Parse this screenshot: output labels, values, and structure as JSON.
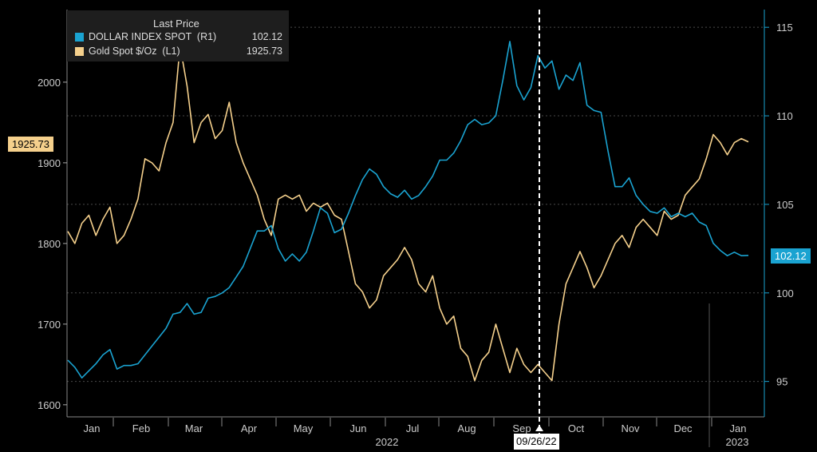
{
  "legend": {
    "header": "Last Price",
    "series": [
      {
        "name": "DOLLAR INDEX SPOT  (R1)",
        "value": "102.12",
        "color": "#1aa3d1"
      },
      {
        "name": "Gold Spot $/Oz  (L1)",
        "value": "1925.73",
        "color": "#f5d08c"
      }
    ]
  },
  "tags": {
    "gold_last": "1925.73",
    "dxy_last": "102.12"
  },
  "marker": {
    "date_label": "09/26/22"
  },
  "year_labels": {
    "y2022": "2022",
    "y2023": "2023"
  },
  "chart_data": {
    "type": "line",
    "x_labels": [
      "Jan",
      "Feb",
      "Mar",
      "Apr",
      "May",
      "Jun",
      "Jul",
      "Aug",
      "Sep",
      "Oct",
      "Nov",
      "Dec",
      "Jan"
    ],
    "left_axis": {
      "ticks": [
        1600,
        1700,
        1800,
        1900,
        2000
      ],
      "range": [
        1585,
        2090
      ]
    },
    "right_axis": {
      "ticks": [
        95,
        100,
        105,
        110,
        115
      ],
      "range": [
        93,
        116
      ]
    },
    "series": [
      {
        "name": "Gold Spot $/Oz (L1)",
        "axis": "left",
        "color": "#f5d08c",
        "values": [
          1815,
          1800,
          1825,
          1835,
          1810,
          1830,
          1845,
          1800,
          1810,
          1830,
          1855,
          1905,
          1900,
          1890,
          1925,
          1950,
          2045,
          1995,
          1925,
          1950,
          1960,
          1930,
          1940,
          1975,
          1925,
          1900,
          1880,
          1860,
          1830,
          1810,
          1855,
          1860,
          1855,
          1860,
          1840,
          1850,
          1845,
          1850,
          1835,
          1830,
          1790,
          1750,
          1740,
          1720,
          1730,
          1760,
          1770,
          1780,
          1795,
          1780,
          1750,
          1740,
          1760,
          1720,
          1700,
          1710,
          1670,
          1660,
          1630,
          1655,
          1665,
          1700,
          1670,
          1640,
          1670,
          1650,
          1640,
          1650,
          1640,
          1630,
          1700,
          1750,
          1770,
          1790,
          1770,
          1745,
          1760,
          1780,
          1800,
          1810,
          1795,
          1820,
          1830,
          1820,
          1810,
          1840,
          1830,
          1835,
          1860,
          1870,
          1880,
          1905,
          1935,
          1925,
          1910,
          1925,
          1930,
          1926
        ]
      },
      {
        "name": "DOLLAR INDEX SPOT (R1)",
        "axis": "right",
        "color": "#1aa3d1",
        "values": [
          96.2,
          95.8,
          95.2,
          95.6,
          96.0,
          96.5,
          96.8,
          95.7,
          95.9,
          95.9,
          96.0,
          96.5,
          97.0,
          97.5,
          98.0,
          98.8,
          98.9,
          99.4,
          98.8,
          98.9,
          99.7,
          99.8,
          100.0,
          100.3,
          100.9,
          101.5,
          102.5,
          103.5,
          103.5,
          103.8,
          102.5,
          101.8,
          102.2,
          101.8,
          102.3,
          103.5,
          104.8,
          104.5,
          103.4,
          103.6,
          104.5,
          105.5,
          106.4,
          107.0,
          106.7,
          106.0,
          105.6,
          105.4,
          105.8,
          105.3,
          105.5,
          106.0,
          106.6,
          107.5,
          107.5,
          107.9,
          108.6,
          109.5,
          109.8,
          109.5,
          109.6,
          110.0,
          112.0,
          114.2,
          111.7,
          110.9,
          111.6,
          113.4,
          112.7,
          113.1,
          111.5,
          112.3,
          112.0,
          113.0,
          110.6,
          110.3,
          110.2,
          108.0,
          106.0,
          106.0,
          106.5,
          105.5,
          105.0,
          104.6,
          104.5,
          104.8,
          104.3,
          104.5,
          104.3,
          104.5,
          104.0,
          103.8,
          102.8,
          102.4,
          102.1,
          102.3,
          102.1,
          102.12
        ]
      }
    ]
  }
}
